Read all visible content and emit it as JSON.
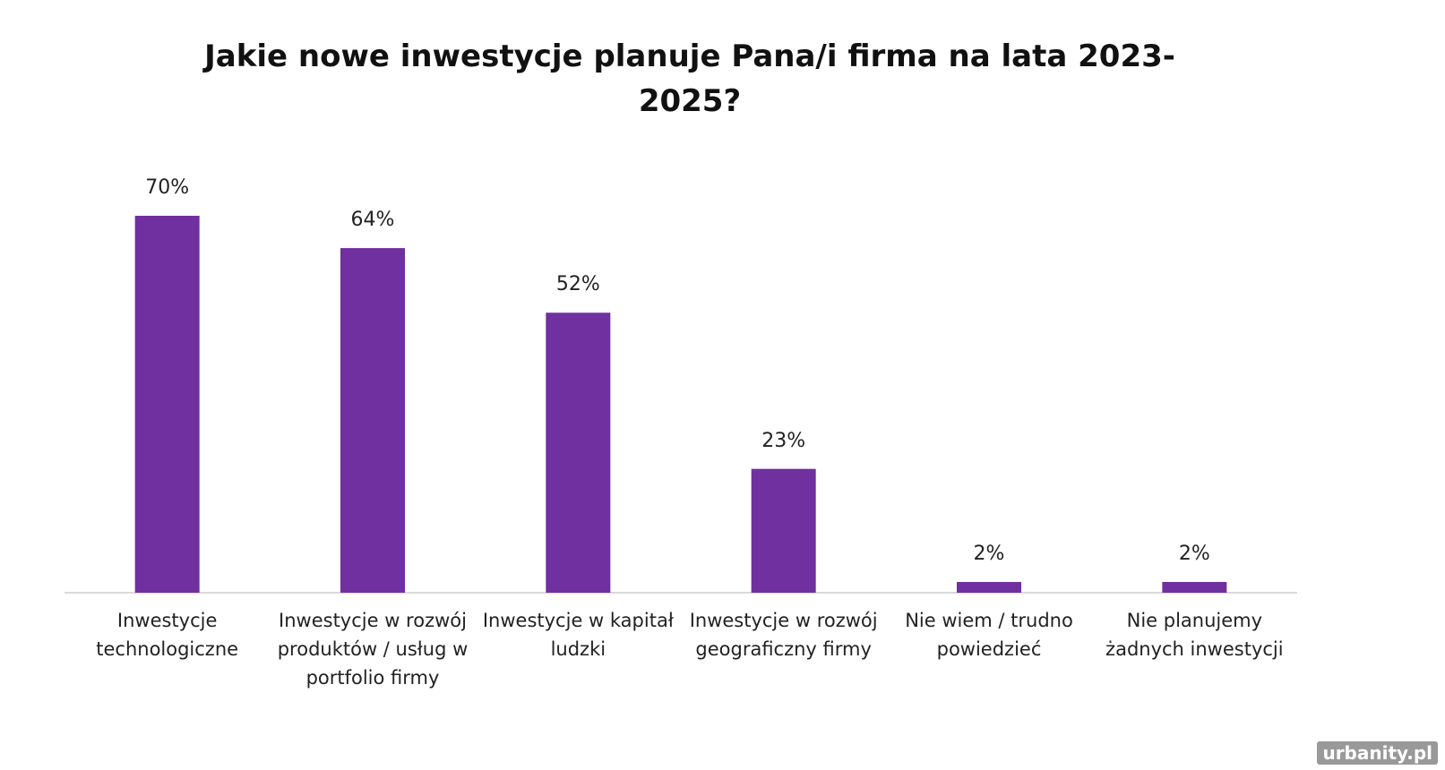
{
  "chart_data": {
    "type": "bar",
    "title": "Jakie nowe inwestycje planuje Pana/i firma na lata 2023-2025?",
    "categories": [
      "Inwestycje technologiczne",
      "Inwestycje w rozwój produktów / usług w portfolio firmy",
      "Inwestycje w kapitał ludzki",
      "Inwestycje w rozwój geograficzny firmy",
      "Nie wiem / trudno powiedzieć",
      "Nie planujemy żadnych inwestycji"
    ],
    "values": [
      70,
      64,
      52,
      23,
      2,
      2
    ],
    "value_labels": [
      "70%",
      "64%",
      "52%",
      "23%",
      "2%",
      "2%"
    ],
    "color": "#7030a0"
  },
  "watermark": "urbanity.pl"
}
